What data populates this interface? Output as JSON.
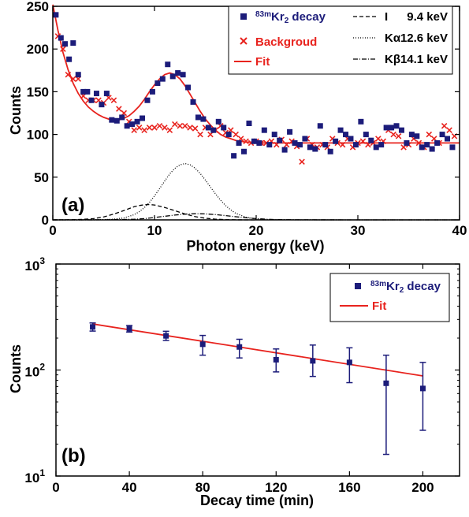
{
  "colors": {
    "decay": "#1c1c7a",
    "background": "#e8231e",
    "fit": "#e8231e",
    "axis": "#000000"
  },
  "chart_data": [
    {
      "type": "scatter",
      "panel_label": "(a)",
      "xlabel": "Photon energy (keV)",
      "ylabel": "Counts",
      "xlim": [
        0,
        40
      ],
      "ylim": [
        0,
        250
      ],
      "xticks": [
        0,
        10,
        20,
        30,
        40
      ],
      "yticks": [
        0,
        50,
        100,
        150,
        200,
        250
      ],
      "grid": false,
      "legend_placement": "top-right",
      "legend": {
        "decay": {
          "sup": "83m",
          "base": "Kr",
          "sub": "2",
          "rest": " decay"
        },
        "background": "Backgroud",
        "fit": "Fit",
        "components": [
          {
            "name": "I",
            "energy": "9.4 keV",
            "style": "dashed"
          },
          {
            "name": "Kα",
            "energy": "12.6 keV",
            "style": "dotted"
          },
          {
            "name": "Kβ",
            "energy": "14.1 keV",
            "style": "dashdot"
          }
        ]
      },
      "series": [
        {
          "name": "83mKr2 decay",
          "marker": "square",
          "x": [
            0.3,
            0.8,
            1.2,
            1.6,
            2.0,
            2.5,
            3.0,
            3.4,
            3.8,
            4.3,
            4.8,
            5.3,
            5.8,
            6.3,
            6.8,
            7.3,
            7.8,
            8.3,
            8.8,
            9.3,
            9.8,
            10.3,
            10.8,
            11.3,
            11.8,
            12.3,
            12.8,
            13.3,
            13.8,
            14.3,
            14.8,
            15.3,
            15.8,
            16.3,
            16.8,
            17.3,
            17.8,
            18.3,
            18.8,
            19.3,
            19.8,
            20.3,
            20.8,
            21.3,
            21.8,
            22.3,
            22.8,
            23.3,
            23.8,
            24.3,
            24.8,
            25.3,
            25.8,
            26.3,
            26.8,
            27.3,
            27.8,
            28.3,
            28.8,
            29.3,
            29.8,
            30.3,
            30.8,
            31.3,
            31.8,
            32.3,
            32.8,
            33.3,
            33.8,
            34.3,
            34.8,
            35.3,
            35.8,
            36.3,
            36.8,
            37.3,
            37.8,
            38.3,
            38.8,
            39.3
          ],
          "y": [
            240,
            213,
            206,
            188,
            207,
            170,
            150,
            150,
            140,
            148,
            135,
            148,
            117,
            116,
            120,
            110,
            112,
            115,
            119,
            140,
            150,
            160,
            165,
            182,
            168,
            172,
            170,
            155,
            138,
            120,
            118,
            108,
            105,
            115,
            108,
            100,
            75,
            90,
            80,
            113,
            92,
            90,
            105,
            88,
            100,
            93,
            82,
            103,
            90,
            88,
            95,
            85,
            83,
            110,
            88,
            80,
            92,
            105,
            100,
            95,
            88,
            115,
            100,
            93,
            85,
            88,
            108,
            108,
            110,
            105,
            90,
            100,
            98,
            85,
            88,
            83,
            90,
            100,
            95,
            85
          ]
        },
        {
          "name": "Backgroud",
          "marker": "x",
          "x": [
            0.5,
            1.0,
            1.5,
            2.0,
            2.5,
            3.0,
            3.5,
            4.0,
            4.5,
            5.0,
            5.5,
            6.0,
            6.5,
            7.0,
            7.5,
            8.0,
            8.5,
            9.0,
            9.5,
            10.0,
            10.5,
            11.0,
            11.5,
            12.0,
            12.5,
            13.0,
            13.5,
            14.0,
            14.5,
            15.0,
            15.5,
            16.0,
            16.5,
            17.0,
            17.5,
            18.0,
            18.5,
            19.0,
            19.5,
            20.0,
            20.5,
            21.0,
            21.5,
            22.0,
            22.5,
            23.0,
            23.5,
            24.0,
            24.5,
            25.0,
            25.5,
            26.0,
            26.5,
            27.0,
            27.5,
            28.0,
            28.5,
            29.0,
            29.5,
            30.0,
            30.5,
            31.0,
            31.5,
            32.0,
            32.5,
            33.0,
            33.5,
            34.0,
            34.5,
            35.0,
            35.5,
            36.0,
            36.5,
            37.0,
            37.5,
            38.0,
            38.5,
            39.0,
            39.5
          ],
          "y": [
            215,
            200,
            170,
            165,
            165,
            145,
            140,
            140,
            140,
            137,
            143,
            140,
            130,
            125,
            115,
            105,
            108,
            105,
            108,
            108,
            110,
            108,
            105,
            112,
            110,
            110,
            108,
            107,
            100,
            108,
            100,
            105,
            110,
            102,
            105,
            100,
            95,
            92,
            90,
            92,
            90,
            90,
            92,
            88,
            94,
            88,
            92,
            86,
            68,
            95,
            88,
            85,
            88,
            85,
            95,
            90,
            88,
            95,
            85,
            90,
            92,
            88,
            90,
            95,
            92,
            105,
            100,
            98,
            85,
            88,
            95,
            90,
            85,
            100,
            95,
            90,
            110,
            105,
            98
          ]
        },
        {
          "name": "Fit",
          "style": "line",
          "x": [
            0,
            0.5,
            1,
            1.5,
            2,
            2.5,
            3,
            3.5,
            4,
            4.5,
            5,
            5.5,
            6,
            6.5,
            7,
            7.5,
            8,
            8.5,
            9,
            9.5,
            10,
            10.5,
            11,
            11.5,
            12,
            12.5,
            13,
            13.5,
            14,
            14.5,
            15,
            15.5,
            16,
            16.5,
            17,
            17.5,
            18,
            18.5,
            19,
            19.5,
            20,
            21,
            22,
            24,
            26,
            28,
            30,
            32,
            34,
            36,
            38,
            40
          ],
          "y": [
            255,
            222,
            196,
            176,
            160,
            148,
            139,
            132,
            127,
            123,
            120,
            118,
            117,
            117,
            119,
            122,
            127,
            133,
            141,
            150,
            158,
            165,
            170,
            172,
            170,
            165,
            157,
            147,
            137,
            127,
            118,
            111,
            105,
            100,
            97,
            95,
            93,
            92,
            91,
            91,
            90,
            90,
            90,
            90,
            90,
            90,
            90,
            90,
            90,
            90,
            90,
            90
          ]
        },
        {
          "name": "I 9.4 keV",
          "style": "dashed",
          "x": [
            0,
            2,
            3,
            4,
            5,
            6,
            7,
            8,
            8.5,
            9,
            9.4,
            10,
            11,
            12,
            13,
            14,
            15,
            16,
            17,
            18,
            19,
            20
          ],
          "y": [
            0,
            0.2,
            0.6,
            1.5,
            3.4,
            6.8,
            11,
            15.4,
            16.8,
            17.7,
            18,
            17.4,
            14.6,
            10.8,
            6.9,
            3.8,
            1.9,
            0.8,
            0.3,
            0.1,
            0.03,
            0
          ]
        },
        {
          "name": "Kα 12.6 keV",
          "style": "dotted",
          "x": [
            0,
            2,
            5,
            6,
            7,
            8,
            8.5,
            9,
            9.5,
            10,
            10.5,
            11,
            11.5,
            12,
            12.5,
            13,
            13.5,
            14,
            14.5,
            15,
            15.5,
            16,
            16.5,
            17,
            17.5,
            18,
            19,
            20,
            21,
            25,
            30,
            40
          ],
          "y": [
            0,
            0,
            0.3,
            0.8,
            2.3,
            6.1,
            9.5,
            14.3,
            20.5,
            28,
            36.6,
            45.4,
            53.8,
            60.2,
            64.5,
            66,
            64.5,
            60.4,
            54.3,
            46.7,
            38.5,
            30.4,
            23,
            16.7,
            11.6,
            7.7,
            3,
            1,
            0.3,
            0,
            0,
            0
          ]
        },
        {
          "name": "Kβ 14.1 keV",
          "style": "dashdot",
          "x": [
            0,
            5,
            8,
            9,
            10,
            11,
            12,
            13,
            14,
            14.1,
            15,
            16,
            17,
            18,
            19,
            20,
            21,
            22,
            23,
            25,
            30,
            40
          ],
          "y": [
            0,
            0.05,
            0.7,
            1.5,
            2.8,
            4.2,
            5.6,
            6.7,
            7.2,
            7.2,
            7,
            6.2,
            5,
            3.7,
            2.5,
            1.5,
            0.8,
            0.4,
            0.2,
            0.05,
            0,
            0
          ]
        }
      ]
    },
    {
      "type": "scatter",
      "panel_label": "(b)",
      "xlabel": "Decay time (min)",
      "ylabel": "Counts",
      "xlim": [
        0,
        220
      ],
      "ylim": [
        10,
        1000
      ],
      "yscale": "log",
      "xticks": [
        0,
        40,
        80,
        120,
        160,
        200
      ],
      "yticks": [
        {
          "value": 10,
          "base": "10",
          "exp": "1"
        },
        {
          "value": 100,
          "base": "10",
          "exp": "2"
        },
        {
          "value": 1000,
          "base": "10",
          "exp": "3"
        }
      ],
      "grid": false,
      "legend_placement": "top-right",
      "legend": {
        "decay": {
          "sup": "83m",
          "base": "Kr",
          "sub": "2",
          "rest": " decay"
        },
        "fit": "Fit"
      },
      "series": [
        {
          "name": "83mKr2 decay",
          "marker": "square",
          "errorbars": true,
          "x": [
            20,
            40,
            60,
            80,
            100,
            120,
            140,
            160,
            180,
            200
          ],
          "y": [
            255,
            245,
            210,
            175,
            165,
            125,
            122,
            118,
            75,
            67
          ],
          "y_low": [
            233,
            228,
            190,
            138,
            130,
            96,
            87,
            76,
            16,
            27
          ],
          "y_high": [
            278,
            263,
            232,
            212,
            195,
            158,
            172,
            162,
            138,
            118
          ]
        },
        {
          "name": "Fit",
          "style": "line",
          "x": [
            20,
            200
          ],
          "y": [
            272,
            88
          ]
        }
      ]
    }
  ]
}
